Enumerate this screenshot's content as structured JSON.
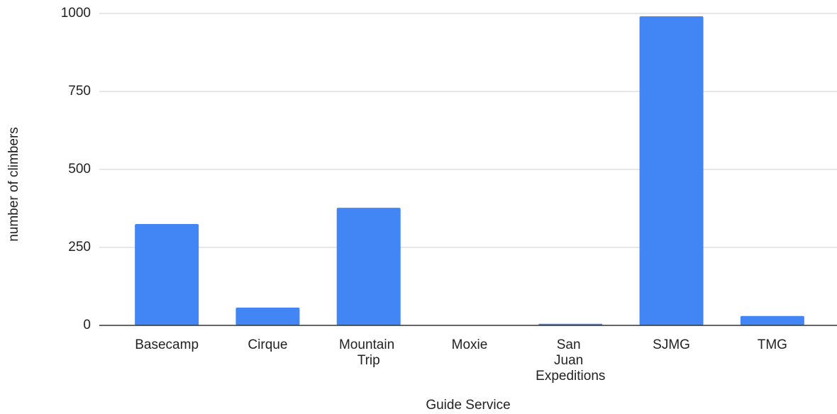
{
  "chart_data": {
    "type": "bar",
    "x_label": "Guide Service",
    "y_label": "number of climbers",
    "categories": [
      "Basecamp",
      "Cirque",
      "Mountain Trip",
      "Moxie",
      "San Juan Expeditions",
      "SJMG",
      "TMG"
    ],
    "values": [
      325,
      57,
      377,
      0,
      5,
      991,
      30
    ],
    "color": "#4285f4",
    "ylim": [
      0,
      1000
    ],
    "yticks": [
      0,
      250,
      500,
      750,
      1000
    ],
    "grid": true
  }
}
